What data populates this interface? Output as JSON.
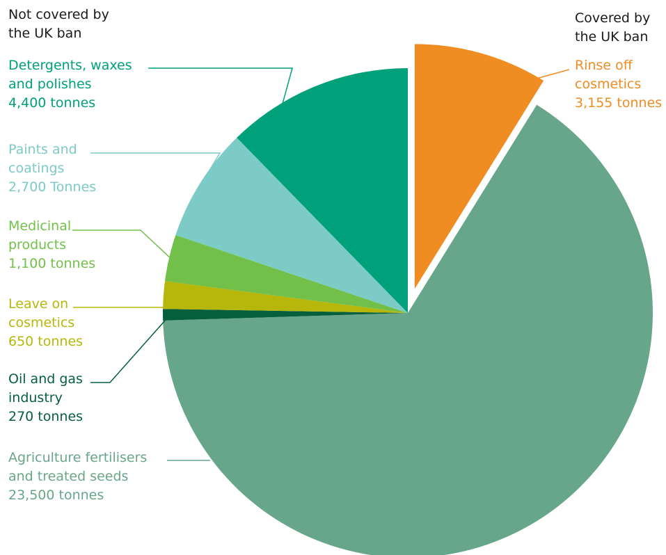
{
  "headers": {
    "left": [
      "Not covered by",
      "the UK ban"
    ],
    "right": [
      "Covered by",
      "the UK ban"
    ]
  },
  "chart_data": {
    "type": "pie",
    "title": "",
    "unit": "tonnes",
    "slices": [
      {
        "key": "rinse_off",
        "label": [
          "Rinse off",
          "cosmetics",
          "3,155 tonnes"
        ],
        "value": 3155,
        "color": "#ef8c22",
        "covered": true,
        "exploded": true
      },
      {
        "key": "agriculture",
        "label": [
          "Agriculture fertilisers",
          "and treated seeds",
          "23,500 tonnes"
        ],
        "value": 23500,
        "color": "#68a68b",
        "covered": false
      },
      {
        "key": "oil_gas",
        "label": [
          "Oil and gas",
          "industry",
          "270 tonnes"
        ],
        "value": 270,
        "color": "#065f3c",
        "covered": false
      },
      {
        "key": "leave_on",
        "label": [
          "Leave on",
          "cosmetics",
          "650 tonnes"
        ],
        "value": 650,
        "color": "#b7b60b",
        "covered": false
      },
      {
        "key": "medicinal",
        "label": [
          "Medicinal",
          "products",
          "1,100 tonnes"
        ],
        "value": 1100,
        "color": "#72c04a",
        "covered": false
      },
      {
        "key": "paints",
        "label": [
          "Paints and",
          "coatings",
          "2,700 Tonnes"
        ],
        "value": 2700,
        "color": "#7ccbc6",
        "covered": false
      },
      {
        "key": "detergents",
        "label": [
          "Detergents, waxes",
          "and polishes",
          "4,400 tonnes"
        ],
        "value": 4400,
        "color": "#00a07a",
        "covered": false
      }
    ]
  }
}
